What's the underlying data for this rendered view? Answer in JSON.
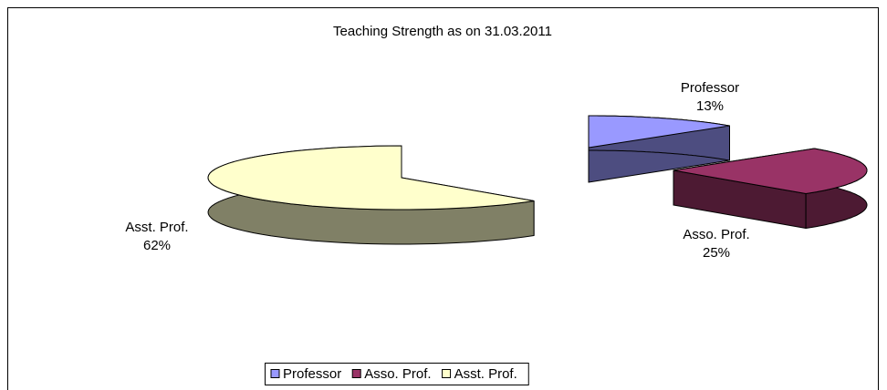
{
  "chart_data": {
    "type": "pie",
    "title": "Teaching Strength as on 31.03.2011",
    "categories": [
      "Professor",
      "Asso. Prof.",
      "Asst. Prof."
    ],
    "values": [
      13,
      25,
      62
    ],
    "value_labels": [
      "13%",
      "25%",
      "62%"
    ],
    "colors": [
      "#9999ff",
      "#993366",
      "#ffffcc"
    ],
    "legend": "bottom"
  }
}
